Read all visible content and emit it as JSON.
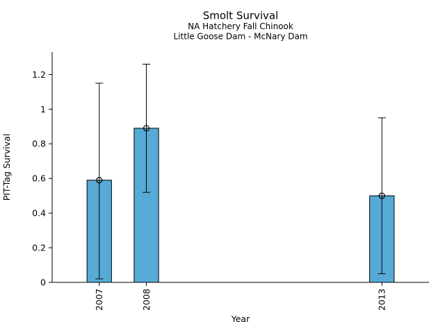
{
  "chart_data": {
    "type": "bar",
    "title": "Smolt Survival",
    "subtitles": [
      "NA Hatchery Fall Chinook",
      "Little Goose Dam - McNary Dam"
    ],
    "xlabel": "Year",
    "ylabel": "PIT-Tag Survival",
    "categories": [
      "2007",
      "2008",
      "2013"
    ],
    "x_values": [
      2007,
      2008,
      2013
    ],
    "values": [
      0.59,
      0.89,
      0.5
    ],
    "error_low": [
      0.02,
      0.52,
      0.05
    ],
    "error_high": [
      1.15,
      1.26,
      0.95
    ],
    "xlim": [
      2006,
      2014
    ],
    "ylim": [
      0,
      1.33
    ],
    "ytick_values": [
      0,
      0.2,
      0.4,
      0.6,
      0.8,
      1.0,
      1.2
    ],
    "ytick_labels": [
      "0",
      "0.2",
      "0.4",
      "0.6",
      "0.8",
      "1",
      "1.2"
    ],
    "bar_width_years": 0.52,
    "bar_fill": "#56AAD5",
    "bar_edge": "#000000",
    "axis_color": "#000000",
    "marker": "open-circle",
    "grid": false,
    "legend": null,
    "background": "#ffffff"
  }
}
